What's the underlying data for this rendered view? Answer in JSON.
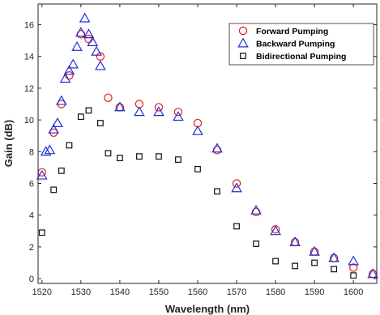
{
  "chart_data": {
    "type": "scatter",
    "title": "",
    "xlabel": "Wavelength (nm)",
    "ylabel": "Gain (dB)",
    "xlim": [
      1519,
      1606
    ],
    "ylim": [
      -0.3,
      17.3
    ],
    "xticks": [
      1520,
      1530,
      1540,
      1550,
      1560,
      1570,
      1580,
      1590,
      1600
    ],
    "yticks": [
      0,
      2,
      4,
      6,
      8,
      10,
      12,
      14,
      16
    ],
    "grid": false,
    "legend_position": "top-right",
    "series": [
      {
        "name": "Forward Pumping",
        "marker": "circle",
        "color": "#e41a1c",
        "x": [
          1520,
          1523,
          1525,
          1527,
          1530,
          1532,
          1535,
          1537,
          1540,
          1545,
          1550,
          1555,
          1560,
          1565,
          1570,
          1575,
          1580,
          1585,
          1590,
          1595,
          1600,
          1605
        ],
        "y": [
          6.7,
          9.2,
          11.0,
          12.8,
          15.4,
          15.1,
          14.0,
          11.4,
          10.8,
          11.0,
          10.8,
          10.5,
          9.8,
          8.1,
          6.0,
          4.2,
          3.1,
          2.3,
          1.7,
          1.3,
          0.7,
          0.3
        ]
      },
      {
        "name": "Backward Pumping",
        "marker": "triangle",
        "color": "#1f2fd6",
        "x": [
          1520,
          1521,
          1522,
          1523,
          1524,
          1525,
          1526,
          1527,
          1528,
          1529,
          1530,
          1531,
          1532,
          1533,
          1534,
          1535,
          1540,
          1545,
          1550,
          1555,
          1560,
          1565,
          1570,
          1575,
          1580,
          1585,
          1590,
          1595,
          1600,
          1605
        ],
        "y": [
          6.5,
          8.0,
          8.1,
          9.4,
          9.8,
          11.2,
          12.6,
          13.1,
          13.5,
          14.6,
          15.5,
          16.4,
          15.4,
          14.9,
          14.3,
          13.4,
          10.8,
          10.5,
          10.5,
          10.2,
          9.3,
          8.2,
          5.7,
          4.3,
          3.0,
          2.3,
          1.7,
          1.3,
          1.1,
          0.3
        ]
      },
      {
        "name": "Bidirectional Pumping",
        "marker": "square",
        "color": "#111111",
        "x": [
          1520,
          1523,
          1525,
          1527,
          1530,
          1532,
          1535,
          1537,
          1540,
          1545,
          1550,
          1555,
          1560,
          1565,
          1570,
          1575,
          1580,
          1585,
          1590,
          1595,
          1600
        ],
        "y": [
          2.9,
          5.6,
          6.8,
          8.4,
          10.2,
          10.6,
          9.8,
          7.9,
          7.6,
          7.7,
          7.7,
          7.5,
          6.9,
          5.5,
          3.3,
          2.2,
          1.1,
          0.8,
          1.0,
          0.6,
          0.2
        ]
      }
    ]
  }
}
